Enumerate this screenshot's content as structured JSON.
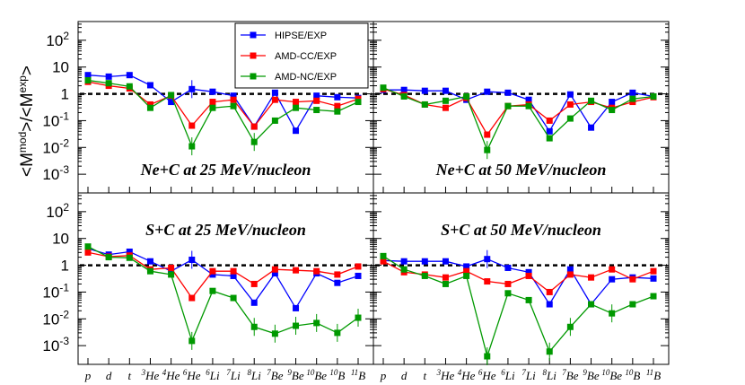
{
  "chart_data": {
    "type": "line",
    "ylabel": "<M^mod>/<M^exp>",
    "ylabel_parts": {
      "open": "<M",
      "sup1": "mod",
      "mid": ">/<M",
      "sup2": "exp",
      "close": ">"
    },
    "yscale": "log",
    "ylim": [
      0.0002,
      500
    ],
    "yticks": [
      {
        "value": 0.001,
        "base": "10",
        "exp": "-3"
      },
      {
        "value": 0.01,
        "base": "10",
        "exp": "-2"
      },
      {
        "value": 0.1,
        "base": "10",
        "exp": "-1"
      },
      {
        "value": 1,
        "base": "1",
        "exp": ""
      },
      {
        "value": 10,
        "base": "10",
        "exp": ""
      },
      {
        "value": 100,
        "base": "10",
        "exp": "2"
      }
    ],
    "categories": [
      {
        "sup": "",
        "base": "p"
      },
      {
        "sup": "",
        "base": "d"
      },
      {
        "sup": "",
        "base": "t"
      },
      {
        "sup": "3",
        "base": "He"
      },
      {
        "sup": "4",
        "base": "He"
      },
      {
        "sup": "6",
        "base": "He"
      },
      {
        "sup": "6",
        "base": "Li"
      },
      {
        "sup": "7",
        "base": "Li"
      },
      {
        "sup": "8",
        "base": "Li"
      },
      {
        "sup": "7",
        "base": "Be"
      },
      {
        "sup": "9",
        "base": "Be"
      },
      {
        "sup": "10",
        "base": "Be"
      },
      {
        "sup": "10",
        "base": "B"
      },
      {
        "sup": "11",
        "base": "B"
      }
    ],
    "reference_line": 1,
    "legend": {
      "placement": "top-center",
      "entries": [
        {
          "name": "HIPSE/EXP",
          "color": "#0000ff"
        },
        {
          "name": "AMD-CC/EXP",
          "color": "#ff0000"
        },
        {
          "name": "AMD-NC/EXP",
          "color": "#009900"
        }
      ]
    },
    "panels": [
      {
        "title": "Ne+C at 25 MeV/nucleon",
        "title_position": "bottom",
        "series": [
          {
            "name": "HIPSE/EXP",
            "color": "#0000ff",
            "values": [
              5.0,
              4.4,
              5.0,
              2.1,
              0.5,
              1.5,
              1.2,
              0.85,
              0.06,
              1.1,
              0.042,
              0.85,
              0.75,
              0.7
            ]
          },
          {
            "name": "AMD-CC/EXP",
            "color": "#ff0000",
            "values": [
              2.8,
              2.0,
              1.6,
              0.4,
              0.85,
              0.065,
              0.5,
              0.6,
              0.06,
              0.6,
              0.5,
              0.55,
              0.35,
              0.65
            ]
          },
          {
            "name": "AMD-NC/EXP",
            "color": "#009900",
            "values": [
              3.2,
              2.5,
              1.9,
              0.3,
              0.9,
              0.011,
              0.3,
              0.35,
              0.016,
              0.1,
              0.3,
              0.25,
              0.22,
              0.5
            ]
          }
        ]
      },
      {
        "title": "Ne+C at 50 MeV/nucleon",
        "title_position": "bottom",
        "series": [
          {
            "name": "HIPSE/EXP",
            "color": "#0000ff",
            "values": [
              1.4,
              1.4,
              1.3,
              1.3,
              0.6,
              1.2,
              1.1,
              0.6,
              0.04,
              0.95,
              0.055,
              0.5,
              1.1,
              0.8
            ]
          },
          {
            "name": "AMD-CC/EXP",
            "color": "#ff0000",
            "values": [
              1.5,
              0.9,
              0.4,
              0.3,
              0.7,
              0.03,
              0.35,
              0.4,
              0.1,
              0.4,
              0.5,
              0.3,
              0.5,
              0.75
            ]
          },
          {
            "name": "AMD-NC/EXP",
            "color": "#009900",
            "values": [
              1.7,
              0.8,
              0.4,
              0.55,
              0.8,
              0.008,
              0.35,
              0.35,
              0.022,
              0.12,
              0.55,
              0.25,
              0.65,
              0.8
            ]
          }
        ]
      },
      {
        "title": "S+C at 25 MeV/nucleon",
        "title_position": "top",
        "series": [
          {
            "name": "HIPSE/EXP",
            "color": "#0000ff",
            "values": [
              4.2,
              2.5,
              3.2,
              1.4,
              0.6,
              1.6,
              0.45,
              0.4,
              0.04,
              0.5,
              0.025,
              0.5,
              0.22,
              0.4
            ]
          },
          {
            "name": "AMD-CC/EXP",
            "color": "#ff0000",
            "values": [
              3.0,
              2.1,
              2.3,
              0.7,
              0.8,
              0.06,
              0.6,
              0.6,
              0.2,
              0.7,
              0.65,
              0.6,
              0.45,
              0.9
            ]
          },
          {
            "name": "AMD-NC/EXP",
            "color": "#009900",
            "values": [
              5.0,
              2.0,
              1.9,
              0.6,
              0.45,
              0.0015,
              0.11,
              0.06,
              0.005,
              0.0028,
              0.0055,
              0.007,
              0.003,
              0.011
            ]
          }
        ]
      },
      {
        "title": "S+C at 50 MeV/nucleon",
        "title_position": "top",
        "series": [
          {
            "name": "HIPSE/EXP",
            "color": "#0000ff",
            "values": [
              1.5,
              1.4,
              1.4,
              1.4,
              0.9,
              1.7,
              0.8,
              0.55,
              0.035,
              0.7,
              0.035,
              0.3,
              0.35,
              0.32
            ]
          },
          {
            "name": "AMD-CC/EXP",
            "color": "#ff0000",
            "values": [
              1.4,
              0.55,
              0.45,
              0.35,
              0.6,
              0.25,
              0.2,
              0.4,
              0.1,
              0.45,
              0.35,
              0.7,
              0.3,
              0.6
            ]
          },
          {
            "name": "AMD-NC/EXP",
            "color": "#009900",
            "values": [
              2.2,
              0.7,
              0.4,
              0.2,
              0.4,
              0.0004,
              0.09,
              0.05,
              0.0006,
              0.005,
              0.035,
              0.016,
              0.035,
              0.07
            ]
          }
        ]
      }
    ]
  }
}
